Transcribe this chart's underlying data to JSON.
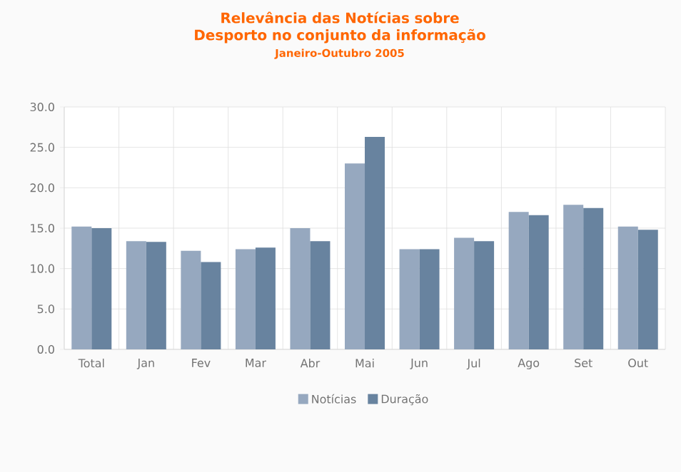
{
  "chart_data": {
    "type": "bar",
    "title": "Relevância das Notícias sobre Desporto  no conjunto da informação",
    "subtitle": "Janeiro-Outubro 2005",
    "categories": [
      "Total",
      "Jan",
      "Fev",
      "Mar",
      "Abr",
      "Mai",
      "Jun",
      "Jul",
      "Ago",
      "Set",
      "Out"
    ],
    "series": [
      {
        "name": "Notícias",
        "color": "#96a8bf",
        "values": [
          15.2,
          13.4,
          12.2,
          12.4,
          15.0,
          23.0,
          12.4,
          13.8,
          17.0,
          17.9,
          15.2
        ]
      },
      {
        "name": "Duração",
        "color": "#68839f",
        "values": [
          15.0,
          13.3,
          10.8,
          12.6,
          13.4,
          26.3,
          12.4,
          13.4,
          16.6,
          17.5,
          14.8
        ]
      }
    ],
    "ylim": [
      0,
      30
    ],
    "yticks": [
      {
        "value": 0,
        "label": "0.0"
      },
      {
        "value": 5,
        "label": "5.0"
      },
      {
        "value": 10,
        "label": "10.0"
      },
      {
        "value": 15,
        "label": "15.0"
      },
      {
        "value": 20,
        "label": "20.0"
      },
      {
        "value": 25,
        "label": "25.0"
      },
      {
        "value": 30,
        "label": "30.0"
      }
    ],
    "grid": true,
    "legend": "bottom"
  }
}
